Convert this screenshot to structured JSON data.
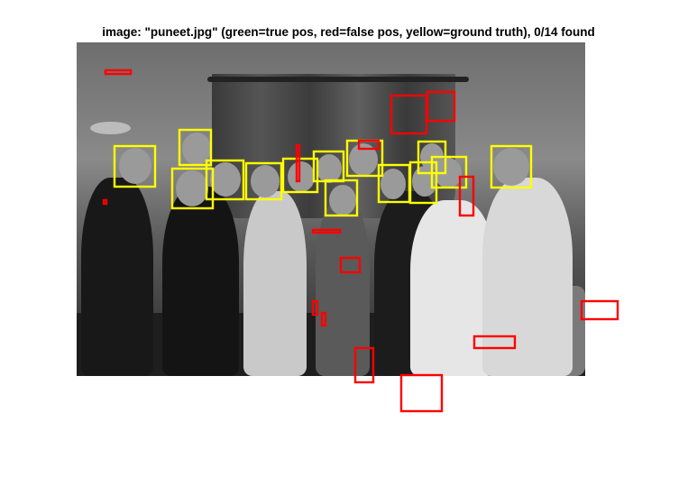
{
  "title": "image: \"puneet.jpg\" (green=true pos, red=false pos, yellow=ground truth), 0/14 found",
  "colors": {
    "ground_truth": "#ffff00",
    "false_positive": "#ff0000",
    "true_positive": "#00ff00",
    "background": "#ffffff"
  }
}
